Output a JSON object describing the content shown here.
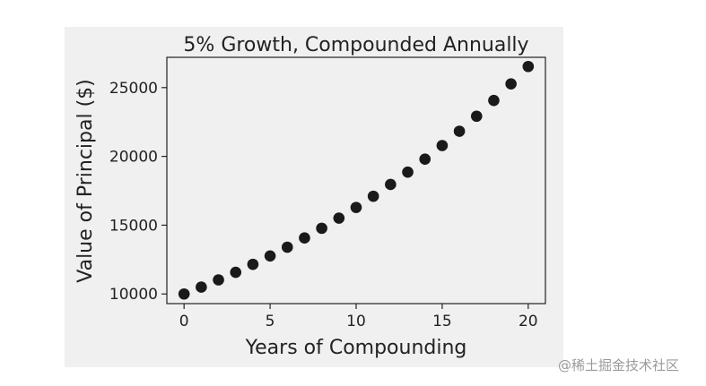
{
  "chart_data": {
    "type": "scatter",
    "title": "5% Growth, Compounded Annually",
    "xlabel": "Years of Compounding",
    "ylabel": "Value of Principal ($)",
    "xlim": [
      -1,
      21
    ],
    "ylim": [
      9300,
      27200
    ],
    "xticks": [
      0,
      5,
      10,
      15,
      20
    ],
    "xtick_labels": [
      "0",
      "5",
      "10",
      "15",
      "20"
    ],
    "yticks": [
      10000,
      15000,
      20000,
      25000
    ],
    "ytick_labels": [
      "10000",
      "15000",
      "20000",
      "25000"
    ],
    "grid": false,
    "legend": "none",
    "marker_color": "#1a1a1a",
    "x": [
      0,
      1,
      2,
      3,
      4,
      5,
      6,
      7,
      8,
      9,
      10,
      11,
      12,
      13,
      14,
      15,
      16,
      17,
      18,
      19,
      20
    ],
    "y": [
      10000,
      10500,
      11025,
      11576,
      12155,
      12763,
      13401,
      14071,
      14775,
      15513,
      16289,
      17103,
      17959,
      18856,
      19799,
      20789,
      21829,
      22920,
      24066,
      25270,
      26533
    ]
  },
  "watermark": "@稀土掘金技术社区"
}
